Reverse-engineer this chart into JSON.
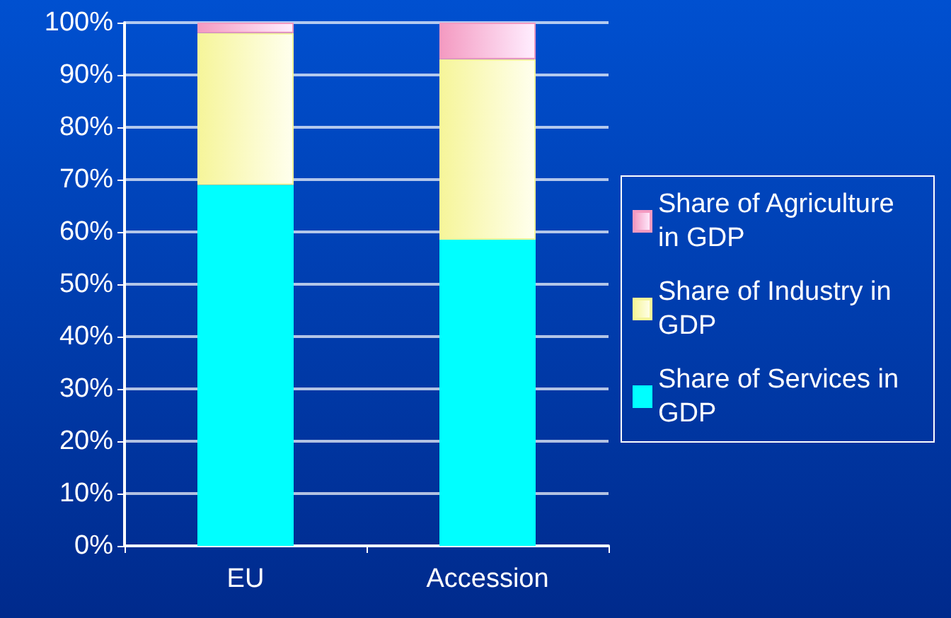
{
  "chart_data": {
    "type": "bar",
    "stacked": true,
    "categories": [
      "EU",
      "Accession"
    ],
    "series": [
      {
        "name": "Share of Services in GDP",
        "color": "#00ffff",
        "values": [
          69,
          58.5
        ]
      },
      {
        "name": "Share of Industry in GDP",
        "color": "#f6f59a",
        "values": [
          29,
          34.5
        ]
      },
      {
        "name": "Share of Agriculture in GDP",
        "color": "#f49ac1",
        "values": [
          2,
          7
        ]
      }
    ],
    "ylim": [
      0,
      100
    ],
    "yticks": [
      {
        "value": 0,
        "label": "0%"
      },
      {
        "value": 10,
        "label": "10%"
      },
      {
        "value": 20,
        "label": "20%"
      },
      {
        "value": 30,
        "label": "30%"
      },
      {
        "value": 40,
        "label": "40%"
      },
      {
        "value": 50,
        "label": "50%"
      },
      {
        "value": 60,
        "label": "60%"
      },
      {
        "value": 70,
        "label": "70%"
      },
      {
        "value": 80,
        "label": "80%"
      },
      {
        "value": 90,
        "label": "90%"
      },
      {
        "value": 100,
        "label": "100%"
      }
    ],
    "grid": true,
    "legend": "right"
  }
}
